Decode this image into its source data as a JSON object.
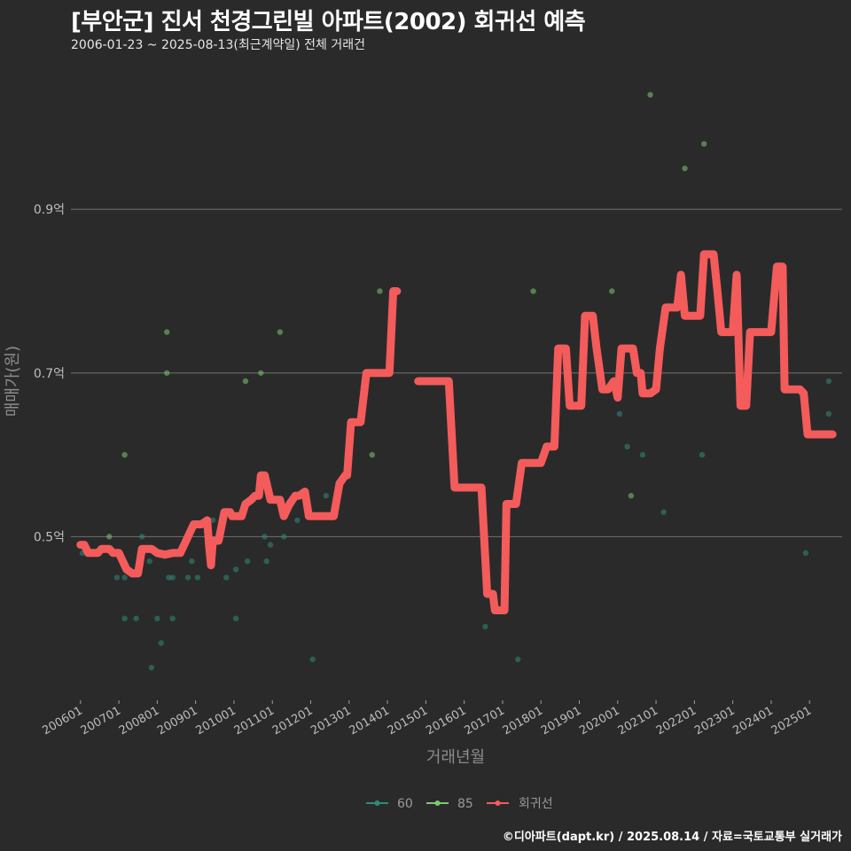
{
  "title": "[부안군] 진서 천경그린빌 아파트(2002) 회귀선 예측",
  "subtitle": "2006-01-23 ~ 2025-08-13(최근계약일) 전체 거래건",
  "caption": "©디아파트(dapt.kr) / 2025.08.14 / 자료=국토교통부 실거래가",
  "colors": {
    "background": "#2a2a2b",
    "grid": "#707070",
    "series_60": "#2e8b7a",
    "series_85": "#7bc96f",
    "regression": "#f45b5b"
  },
  "chart_data": {
    "type": "scatter",
    "xlabel": "거래년월",
    "ylabel": "매매가(원)",
    "xlim": [
      2005.75,
      2025.85
    ],
    "ylim": [
      0.3,
      1.08
    ],
    "y_ticks": [
      {
        "value": 0.5,
        "label": "0.5억"
      },
      {
        "value": 0.7,
        "label": "0.7억"
      },
      {
        "value": 0.9,
        "label": "0.9억"
      }
    ],
    "x_ticks": [
      {
        "value": 2006.0,
        "label": "200601"
      },
      {
        "value": 2007.0,
        "label": "200701"
      },
      {
        "value": 2008.0,
        "label": "200801"
      },
      {
        "value": 2009.0,
        "label": "200901"
      },
      {
        "value": 2010.0,
        "label": "201001"
      },
      {
        "value": 2011.0,
        "label": "201101"
      },
      {
        "value": 2012.0,
        "label": "201201"
      },
      {
        "value": 2013.0,
        "label": "201301"
      },
      {
        "value": 2014.0,
        "label": "201401"
      },
      {
        "value": 2015.0,
        "label": "201501"
      },
      {
        "value": 2016.0,
        "label": "201601"
      },
      {
        "value": 2017.0,
        "label": "201701"
      },
      {
        "value": 2018.0,
        "label": "201801"
      },
      {
        "value": 2019.0,
        "label": "201901"
      },
      {
        "value": 2020.0,
        "label": "202001"
      },
      {
        "value": 2021.0,
        "label": "202101"
      },
      {
        "value": 2022.0,
        "label": "202201"
      },
      {
        "value": 2023.0,
        "label": "202301"
      },
      {
        "value": 2024.0,
        "label": "202401"
      },
      {
        "value": 2025.0,
        "label": "202501"
      }
    ],
    "legend": [
      {
        "key": "60",
        "label": "60"
      },
      {
        "key": "85",
        "label": "85"
      },
      {
        "key": "regression",
        "label": "회귀선"
      }
    ],
    "series": [
      {
        "name": "60",
        "type": "scatter",
        "points": [
          [
            2006.05,
            0.48
          ],
          [
            2006.95,
            0.45
          ],
          [
            2007.15,
            0.45
          ],
          [
            2007.15,
            0.4
          ],
          [
            2007.45,
            0.4
          ],
          [
            2007.6,
            0.5
          ],
          [
            2007.8,
            0.47
          ],
          [
            2007.85,
            0.34
          ],
          [
            2008.0,
            0.4
          ],
          [
            2008.1,
            0.37
          ],
          [
            2008.3,
            0.45
          ],
          [
            2008.4,
            0.45
          ],
          [
            2008.4,
            0.4
          ],
          [
            2008.8,
            0.45
          ],
          [
            2008.9,
            0.47
          ],
          [
            2009.05,
            0.45
          ],
          [
            2009.45,
            0.52
          ],
          [
            2009.6,
            0.5
          ],
          [
            2009.8,
            0.45
          ],
          [
            2010.05,
            0.4
          ],
          [
            2010.05,
            0.46
          ],
          [
            2010.35,
            0.47
          ],
          [
            2010.8,
            0.5
          ],
          [
            2010.85,
            0.47
          ],
          [
            2010.95,
            0.49
          ],
          [
            2011.3,
            0.5
          ],
          [
            2011.5,
            0.54
          ],
          [
            2011.65,
            0.52
          ],
          [
            2012.05,
            0.35
          ],
          [
            2012.4,
            0.55
          ],
          [
            2016.55,
            0.39
          ],
          [
            2017.4,
            0.35
          ],
          [
            2020.05,
            0.65
          ],
          [
            2020.25,
            0.61
          ],
          [
            2020.65,
            0.6
          ],
          [
            2021.2,
            0.53
          ],
          [
            2022.2,
            0.6
          ],
          [
            2024.9,
            0.48
          ],
          [
            2025.5,
            0.65
          ],
          [
            2025.5,
            0.69
          ]
        ]
      },
      {
        "name": "85",
        "type": "scatter",
        "points": [
          [
            2006.75,
            0.5
          ],
          [
            2007.15,
            0.6
          ],
          [
            2008.25,
            0.75
          ],
          [
            2008.25,
            0.7
          ],
          [
            2010.3,
            0.69
          ],
          [
            2010.7,
            0.7
          ],
          [
            2011.2,
            0.75
          ],
          [
            2013.6,
            0.6
          ],
          [
            2013.8,
            0.8
          ],
          [
            2017.8,
            0.8
          ],
          [
            2019.85,
            0.8
          ],
          [
            2020.35,
            0.55
          ],
          [
            2020.85,
            1.04
          ],
          [
            2021.75,
            0.95
          ],
          [
            2022.25,
            0.98
          ]
        ]
      },
      {
        "name": "회귀선",
        "type": "line",
        "segments": [
          [
            [
              2006.0,
              0.49
            ],
            [
              2006.1,
              0.49
            ],
            [
              2006.2,
              0.48
            ],
            [
              2006.45,
              0.48
            ],
            [
              2006.55,
              0.485
            ],
            [
              2006.75,
              0.485
            ],
            [
              2006.85,
              0.48
            ],
            [
              2007.0,
              0.48
            ],
            [
              2007.2,
              0.46
            ],
            [
              2007.35,
              0.455
            ],
            [
              2007.5,
              0.455
            ],
            [
              2007.6,
              0.485
            ],
            [
              2007.85,
              0.485
            ],
            [
              2008.0,
              0.48
            ],
            [
              2008.2,
              0.478
            ],
            [
              2008.4,
              0.48
            ],
            [
              2008.6,
              0.48
            ],
            [
              2008.75,
              0.495
            ],
            [
              2008.95,
              0.515
            ],
            [
              2009.15,
              0.515
            ],
            [
              2009.3,
              0.52
            ],
            [
              2009.35,
              0.49
            ],
            [
              2009.4,
              0.465
            ],
            [
              2009.45,
              0.495
            ],
            [
              2009.6,
              0.495
            ],
            [
              2009.75,
              0.53
            ],
            [
              2009.9,
              0.53
            ],
            [
              2009.95,
              0.525
            ],
            [
              2010.2,
              0.525
            ],
            [
              2010.3,
              0.54
            ],
            [
              2010.45,
              0.545
            ],
            [
              2010.55,
              0.55
            ],
            [
              2010.65,
              0.55
            ],
            [
              2010.7,
              0.575
            ],
            [
              2010.8,
              0.575
            ],
            [
              2010.95,
              0.545
            ],
            [
              2011.2,
              0.545
            ],
            [
              2011.3,
              0.525
            ],
            [
              2011.45,
              0.54
            ],
            [
              2011.6,
              0.55
            ],
            [
              2011.7,
              0.55
            ],
            [
              2011.85,
              0.555
            ],
            [
              2011.95,
              0.525
            ],
            [
              2012.4,
              0.525
            ],
            [
              2012.45,
              0.525
            ],
            [
              2012.6,
              0.525
            ],
            [
              2012.75,
              0.565
            ],
            [
              2012.9,
              0.575
            ],
            [
              2012.95,
              0.575
            ],
            [
              2013.05,
              0.64
            ],
            [
              2013.3,
              0.64
            ],
            [
              2013.45,
              0.7
            ],
            [
              2014.0,
              0.7
            ],
            [
              2014.05,
              0.7
            ],
            [
              2014.15,
              0.8
            ],
            [
              2014.25,
              0.8
            ]
          ],
          [
            [
              2014.8,
              0.69
            ],
            [
              2015.6,
              0.69
            ],
            [
              2015.75,
              0.56
            ],
            [
              2016.45,
              0.56
            ],
            [
              2016.6,
              0.43
            ],
            [
              2016.75,
              0.43
            ],
            [
              2016.8,
              0.41
            ],
            [
              2017.05,
              0.41
            ],
            [
              2017.1,
              0.54
            ],
            [
              2017.35,
              0.54
            ],
            [
              2017.5,
              0.59
            ],
            [
              2018.0,
              0.59
            ],
            [
              2018.15,
              0.61
            ],
            [
              2018.35,
              0.61
            ],
            [
              2018.45,
              0.73
            ],
            [
              2018.65,
              0.73
            ],
            [
              2018.75,
              0.66
            ],
            [
              2019.05,
              0.66
            ],
            [
              2019.15,
              0.77
            ],
            [
              2019.35,
              0.77
            ],
            [
              2019.45,
              0.73
            ],
            [
              2019.6,
              0.68
            ],
            [
              2019.75,
              0.68
            ],
            [
              2019.9,
              0.69
            ],
            [
              2020.0,
              0.67
            ],
            [
              2020.1,
              0.73
            ],
            [
              2020.4,
              0.73
            ],
            [
              2020.5,
              0.7
            ],
            [
              2020.6,
              0.7
            ],
            [
              2020.65,
              0.675
            ],
            [
              2020.85,
              0.675
            ],
            [
              2021.0,
              0.68
            ],
            [
              2021.1,
              0.73
            ],
            [
              2021.25,
              0.78
            ],
            [
              2021.55,
              0.78
            ],
            [
              2021.65,
              0.82
            ],
            [
              2021.75,
              0.77
            ],
            [
              2022.15,
              0.77
            ],
            [
              2022.25,
              0.845
            ],
            [
              2022.5,
              0.845
            ],
            [
              2022.6,
              0.8
            ],
            [
              2022.7,
              0.75
            ],
            [
              2023.0,
              0.75
            ],
            [
              2023.1,
              0.82
            ],
            [
              2023.2,
              0.66
            ],
            [
              2023.35,
              0.66
            ],
            [
              2023.45,
              0.75
            ],
            [
              2024.0,
              0.75
            ],
            [
              2024.15,
              0.83
            ],
            [
              2024.3,
              0.83
            ],
            [
              2024.35,
              0.68
            ],
            [
              2024.75,
              0.68
            ],
            [
              2024.85,
              0.675
            ],
            [
              2024.95,
              0.625
            ],
            [
              2025.6,
              0.625
            ]
          ]
        ]
      }
    ]
  }
}
